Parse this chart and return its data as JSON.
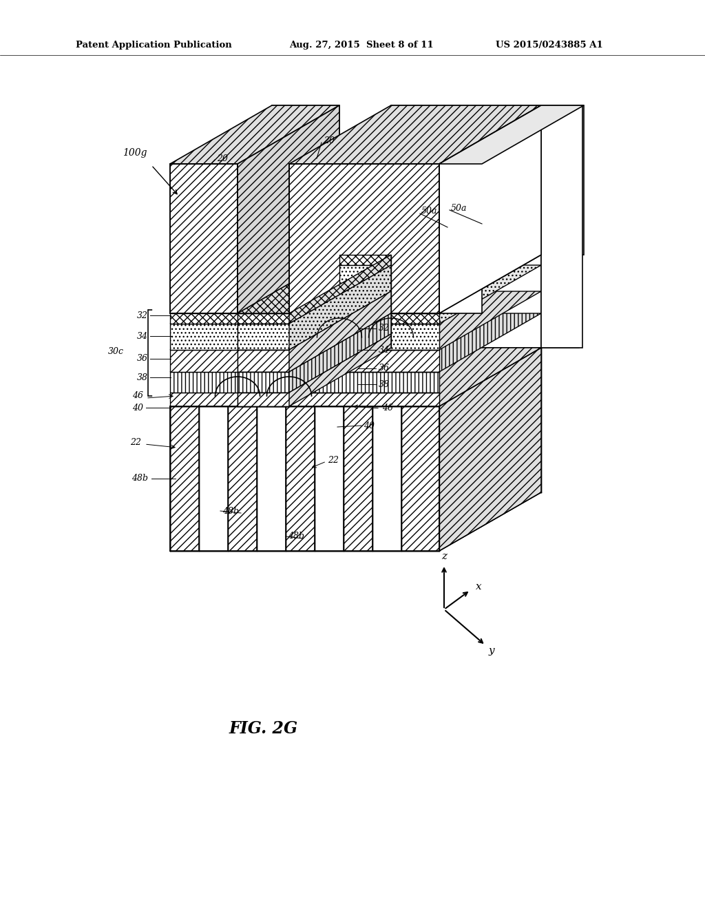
{
  "header_left": "Patent Application Publication",
  "header_mid": "Aug. 27, 2015  Sheet 8 of 11",
  "header_right": "US 2015/0243885 A1",
  "fig_label": "FIG. 2G",
  "bg_color": "#ffffff"
}
